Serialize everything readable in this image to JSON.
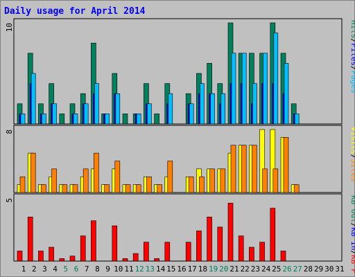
{
  "title": "Daily usage for April 2014",
  "chart_data": [
    {
      "type": "bar",
      "panel": "hits-files-pages",
      "ymax": 10,
      "ylabel_parts": [
        "Pages",
        "Files",
        "Hits"
      ],
      "colors": {
        "Hits": "#00805c",
        "Files": "#0000ff",
        "Pages": "#00c0ff",
        "frame": "#000000"
      },
      "series": [
        {
          "name": "Hits",
          "values": [
            2,
            7,
            2,
            4,
            1,
            2,
            3,
            8,
            1,
            5,
            1,
            1,
            4,
            1,
            4,
            0,
            3,
            5,
            6,
            4,
            10,
            7,
            7,
            7,
            10,
            7,
            2,
            0,
            0,
            0
          ]
        },
        {
          "name": "Files",
          "values": [
            1,
            4,
            1,
            2,
            0,
            1,
            2,
            3,
            1,
            3,
            0,
            1,
            2,
            0,
            2,
            0,
            2,
            3,
            3,
            2,
            4,
            4,
            2,
            4,
            4,
            3,
            1,
            0,
            0,
            0
          ]
        },
        {
          "name": "Pages",
          "values": [
            1,
            5,
            1,
            2,
            0,
            1,
            2,
            4,
            1,
            3,
            0,
            1,
            2,
            0,
            3,
            0,
            2,
            4,
            3,
            3,
            7,
            7,
            4,
            7,
            9,
            6,
            1,
            0,
            0,
            0
          ]
        }
      ]
    },
    {
      "type": "bar",
      "panel": "visits-sites",
      "ymax": 8,
      "ylabel_parts": [
        "Sites",
        "Visits"
      ],
      "colors": {
        "Visits": "#ffff00",
        "Sites": "#ff8000"
      },
      "series": [
        {
          "name": "Visits",
          "values": [
            1,
            5,
            1,
            2,
            1,
            1,
            2,
            3,
            1,
            3,
            1,
            1,
            2,
            1,
            2,
            0,
            2,
            3,
            3,
            3,
            5,
            6,
            6,
            8,
            8,
            7,
            1,
            0,
            0,
            0
          ]
        },
        {
          "name": "Sites",
          "values": [
            2,
            5,
            1,
            3,
            1,
            1,
            3,
            5,
            1,
            4,
            1,
            1,
            2,
            1,
            4,
            0,
            2,
            2,
            3,
            3,
            6,
            6,
            6,
            3,
            3,
            7,
            1,
            0,
            0,
            0
          ]
        }
      ]
    },
    {
      "type": "bar",
      "panel": "kbytes",
      "ymax": 5,
      "ylabel_parts": [
        "KB F",
        "KB In",
        "KB Out"
      ],
      "colors": {
        "KB F": "#ff0000"
      },
      "series": [
        {
          "name": "KB F",
          "values": [
            0.8,
            3.5,
            0.8,
            1.1,
            0.2,
            0.4,
            2,
            3.2,
            0,
            2.8,
            0.2,
            0.6,
            1.5,
            0.2,
            1.5,
            0,
            1.5,
            2.4,
            3.5,
            2.7,
            4.6,
            2,
            1.1,
            1.5,
            4.2,
            0.8,
            0,
            0,
            0,
            0
          ]
        }
      ]
    }
  ],
  "days": [
    "1",
    "2",
    "3",
    "4",
    "5",
    "6",
    "7",
    "8",
    "9",
    "10",
    "11",
    "12",
    "13",
    "14",
    "15",
    "16",
    "17",
    "18",
    "19",
    "20",
    "21",
    "22",
    "23",
    "24",
    "25",
    "26",
    "27",
    "28",
    "29",
    "30",
    "31"
  ],
  "weekend_days": [
    5,
    6,
    12,
    13,
    19,
    20,
    26,
    27
  ],
  "colors": {
    "title": "#0000ff",
    "weekday_label": "#000000",
    "weekend_label": "#00805c",
    "plot_bg": "#c0c0c0"
  }
}
